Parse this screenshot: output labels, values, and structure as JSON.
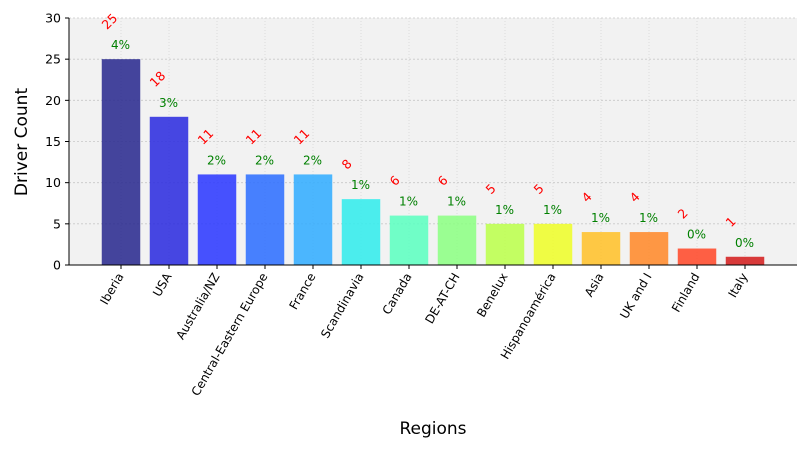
{
  "chart_data": {
    "type": "bar",
    "title": "",
    "xlabel": "Regions",
    "ylabel": "Driver Count",
    "ylim": [
      0,
      30
    ],
    "yticks": [
      0,
      5,
      10,
      15,
      20,
      25,
      30
    ],
    "grid": true,
    "categories": [
      "Iberia",
      "USA",
      "Australia/NZ",
      "Central-Eastern Europe",
      "France",
      "Scandinavia",
      "Canada",
      "DE-AT-CH",
      "Benelux",
      "Hispanoamérica",
      "Asia",
      "UK and I",
      "Finland",
      "Italy"
    ],
    "values": [
      25,
      18,
      11,
      11,
      11,
      8,
      6,
      6,
      5,
      5,
      4,
      4,
      2,
      1
    ],
    "count_labels": [
      "25",
      "18",
      "11",
      "11",
      "11",
      "8",
      "6",
      "6",
      "5",
      "5",
      "4",
      "4",
      "2",
      "1"
    ],
    "percent_labels": [
      "4%",
      "3%",
      "2%",
      "2%",
      "2%",
      "1%",
      "1%",
      "1%",
      "1%",
      "1%",
      "1%",
      "1%",
      "0%",
      "0%"
    ],
    "colors": [
      "#2b2b8f",
      "#2e2edf",
      "#2e3aff",
      "#2f6fff",
      "#33adff",
      "#33ecec",
      "#5dffc0",
      "#8dff84",
      "#bcff4d",
      "#eefd2b",
      "#ffc12b",
      "#ff8a2b",
      "#ff4a2b",
      "#d42020"
    ],
    "count_label_color": "#ff0000",
    "percent_label_color": "#008000",
    "plot_background": "#f2f2f2"
  }
}
